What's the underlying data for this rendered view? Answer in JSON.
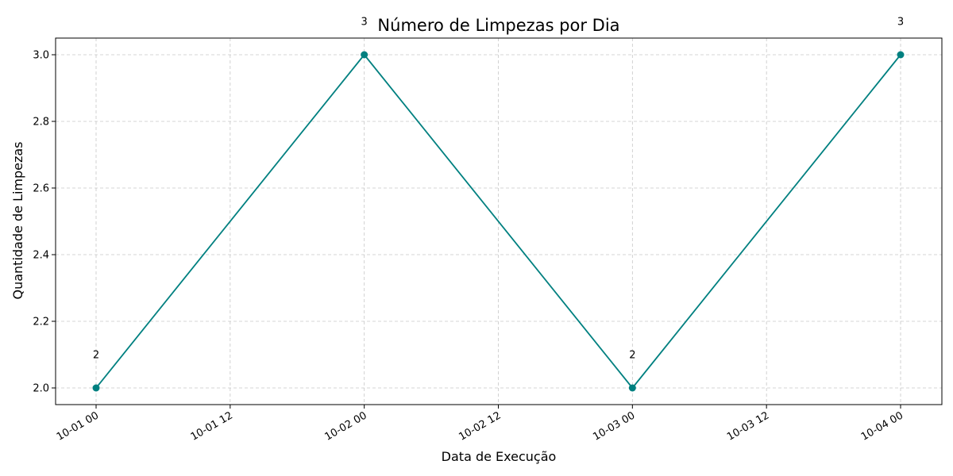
{
  "chart_data": {
    "type": "line",
    "title": "Número de Limpezas por Dia",
    "xlabel": "Data de Execução",
    "ylabel": "Quantidade de Limpezas",
    "x": [
      "2023-10-01T00:00",
      "2023-10-02T00:00",
      "2023-10-03T00:00",
      "2023-10-04T00:00"
    ],
    "series": [
      {
        "values": [
          2,
          3,
          2,
          3
        ],
        "color": "#008080"
      }
    ],
    "data_labels": [
      "2",
      "3",
      "2",
      "3"
    ],
    "x_ticks": [
      "10-01 00",
      "10-01 12",
      "10-02 00",
      "10-02 12",
      "10-03 00",
      "10-03 12",
      "10-04 00"
    ],
    "y_ticks": [
      "2.0",
      "2.2",
      "2.4",
      "2.6",
      "2.8",
      "3.0"
    ],
    "ylim": [
      1.95,
      3.05
    ],
    "grid": true,
    "grid_style": "dashed"
  }
}
